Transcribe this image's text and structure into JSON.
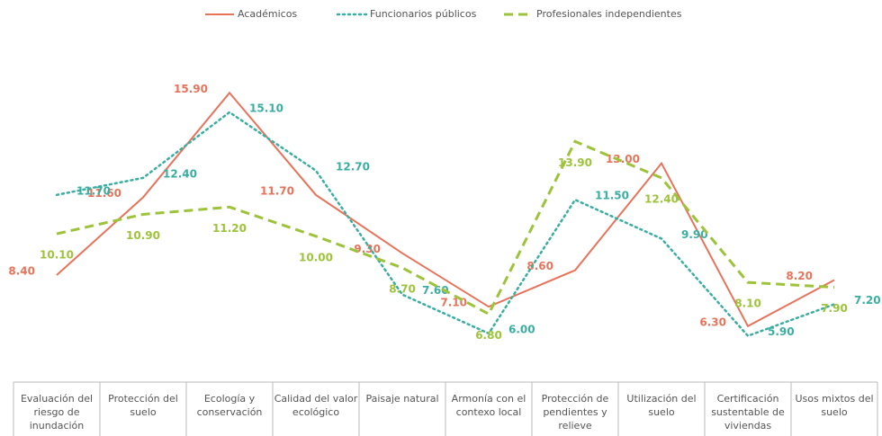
{
  "chart_data": {
    "type": "line",
    "categories": [
      "Evaluación del riesgo de inundación",
      "Protección del suelo",
      "Ecología y conservación",
      "Calidad del valor ecológico",
      "Paisaje natural",
      "Armonía con el contexo local",
      "Protección de pendientes y relieve",
      "Utilización del suelo",
      "Certificación sustentable de viviendas",
      "Usos mixtos del suelo"
    ],
    "series": [
      {
        "name": "Académicos",
        "color": "#e8735a",
        "values": [
          8.4,
          11.6,
          15.9,
          11.7,
          9.3,
          7.1,
          8.6,
          13.0,
          6.3,
          8.2
        ],
        "value_labels": [
          "8.40",
          "11.60",
          "15.90",
          "11.70",
          "9.30",
          "7.10",
          "8.60",
          "13.00",
          "6.30",
          "8.20"
        ]
      },
      {
        "name": "Funcionarios públicos",
        "color": "#3aaea0",
        "values": [
          11.7,
          12.4,
          15.1,
          12.7,
          7.6,
          6.0,
          11.5,
          9.9,
          5.9,
          7.2
        ],
        "value_labels": [
          "11.70",
          "12.40",
          "15.10",
          "12.70",
          "7.60",
          "6.00",
          "11.50",
          "9.90",
          "5.90",
          "7.20"
        ]
      },
      {
        "name": "Profesionales independientes",
        "color": "#9dc33b",
        "values": [
          10.1,
          10.9,
          11.2,
          10.0,
          8.7,
          6.8,
          13.9,
          12.4,
          8.1,
          7.9
        ],
        "value_labels": [
          "10.10",
          "10.90",
          "11.20",
          "10.00",
          "8.70",
          "6.80",
          "13.90",
          "12.40",
          "8.10",
          "7.90"
        ]
      }
    ],
    "ylim": [
      4,
      17.5
    ],
    "legend": "top"
  }
}
